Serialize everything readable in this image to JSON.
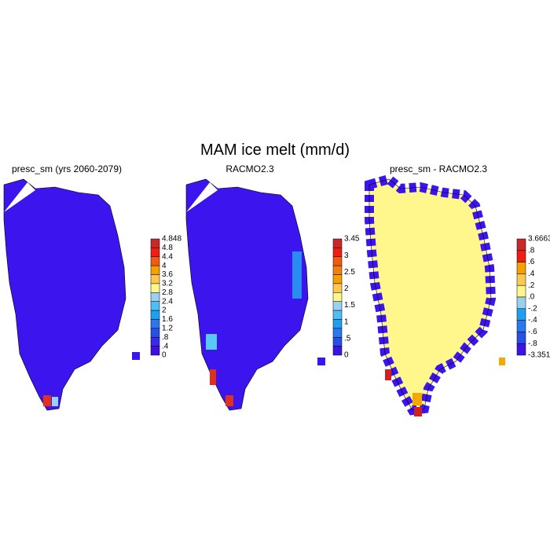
{
  "title": "MAM ice melt (mm/d)",
  "panels": [
    {
      "title": "presc_sm (yrs 2060-2079)",
      "colorbar": [
        "4.848",
        "4.8",
        "4.4",
        "4",
        "3.6",
        "3.2",
        "2.8",
        "2.4",
        "2",
        "1.6",
        "1.2",
        ".8",
        ".4",
        "0"
      ]
    },
    {
      "title": "RACMO2.3",
      "colorbar": [
        "3.45",
        "3",
        "2.5",
        "2",
        "1.5",
        "1",
        ".5",
        "0"
      ]
    },
    {
      "title": "presc_sm - RACMO2.3",
      "colorbar": [
        "3.6663",
        ".8",
        ".6",
        ".4",
        ".2",
        ".0",
        "-.2",
        "-.4",
        "-.6",
        "-.8",
        "-3.351"
      ]
    }
  ]
}
